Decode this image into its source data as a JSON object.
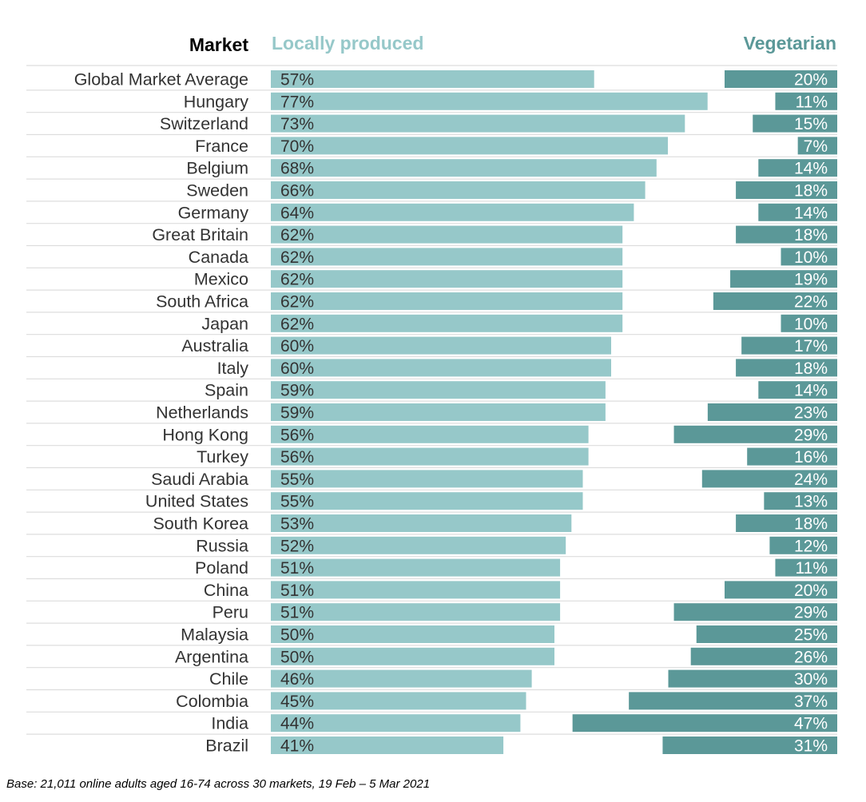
{
  "chart_data": {
    "type": "bar",
    "headers": {
      "market": "Market",
      "local": "Locally produced",
      "veg": "Vegetarian"
    },
    "categories": [
      "Global Market Average",
      "Hungary",
      "Switzerland",
      "France",
      "Belgium",
      "Sweden",
      "Germany",
      "Great Britain",
      "Canada",
      "Mexico",
      "South Africa",
      "Japan",
      "Australia",
      "Italy",
      "Spain",
      "Netherlands",
      "Hong Kong",
      "Turkey",
      "Saudi Arabia",
      "United States",
      "South Korea",
      "Russia",
      "Poland",
      "China",
      "Peru",
      "Malaysia",
      "Argentina",
      "Chile",
      "Colombia",
      "India",
      "Brazil"
    ],
    "series": [
      {
        "name": "Locally produced",
        "values": [
          57,
          77,
          73,
          70,
          68,
          66,
          64,
          62,
          62,
          62,
          62,
          62,
          60,
          60,
          59,
          59,
          56,
          56,
          55,
          55,
          53,
          52,
          51,
          51,
          51,
          50,
          50,
          46,
          45,
          44,
          41
        ]
      },
      {
        "name": "Vegetarian",
        "values": [
          20,
          11,
          15,
          7,
          14,
          18,
          14,
          18,
          10,
          19,
          22,
          10,
          17,
          18,
          14,
          23,
          29,
          16,
          24,
          13,
          18,
          12,
          11,
          20,
          29,
          25,
          26,
          30,
          37,
          47,
          31
        ]
      }
    ],
    "value_suffix": "%",
    "colors": {
      "local": "#96c8c9",
      "veg": "#5b9898",
      "grid": "#dddddd",
      "market_header": "#000000"
    }
  },
  "footnote": "Base: 21,011 online adults aged 16-74 across 30 markets,  19 Feb – 5 Mar 2021"
}
